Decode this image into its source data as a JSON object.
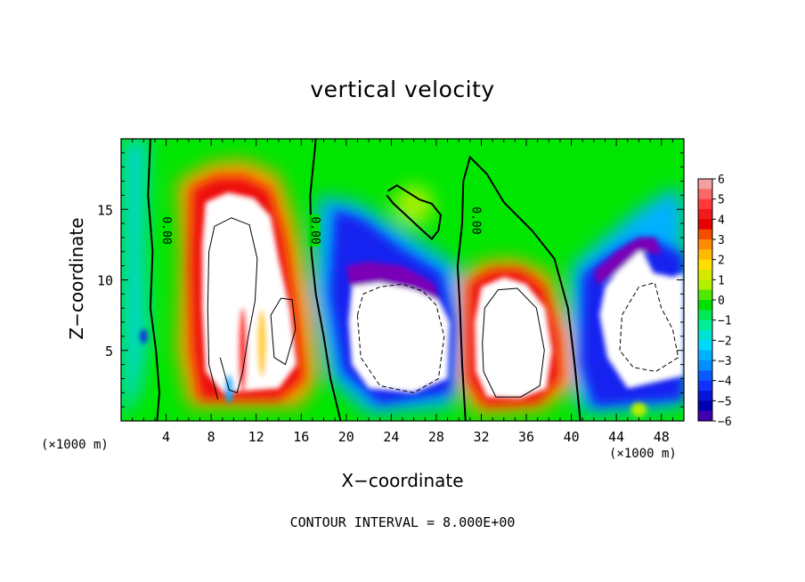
{
  "chart_data": {
    "type": "heatmap",
    "title": "vertical velocity",
    "xlabel": "X−coordinate",
    "ylabel": "Z−coordinate",
    "x_unit": "(×1000 m)",
    "xlim": [
      0,
      50
    ],
    "ylim": [
      0,
      20
    ],
    "x_ticks": [
      4,
      8,
      12,
      16,
      20,
      24,
      28,
      32,
      36,
      40,
      44,
      48
    ],
    "y_ticks": [
      5,
      10,
      15
    ],
    "colorbar": {
      "ticks": [
        6,
        5,
        4,
        3,
        2,
        1,
        0,
        -1,
        -2,
        -3,
        -4,
        -5,
        -6
      ],
      "range": [
        -6,
        6
      ],
      "colors": [
        "#f4a0a0",
        "#ff3a3a",
        "#e60000",
        "#ff8c00",
        "#ffe000",
        "#b4ef00",
        "#00e000",
        "#00ee9a",
        "#00d8ff",
        "#0090ff",
        "#1030ff",
        "#0000b0",
        "#7400b0"
      ]
    },
    "contour_interval": "CONTOUR INTERVAL = 8.000E+00",
    "contour_labels": [
      "0.00",
      "0.00",
      "0.00"
    ],
    "features": [
      {
        "kind": "updraft",
        "x": 10,
        "z": 9,
        "peak": 6
      },
      {
        "kind": "updraft",
        "x": 34,
        "z": 6,
        "peak": 6
      },
      {
        "kind": "downdraft",
        "x": 25,
        "z": 7,
        "peak": -6
      },
      {
        "kind": "downdraft",
        "x": 47,
        "z": 7,
        "peak": -6
      },
      {
        "kind": "positive-band",
        "x": 26,
        "z": 15,
        "peak": 1
      }
    ]
  }
}
